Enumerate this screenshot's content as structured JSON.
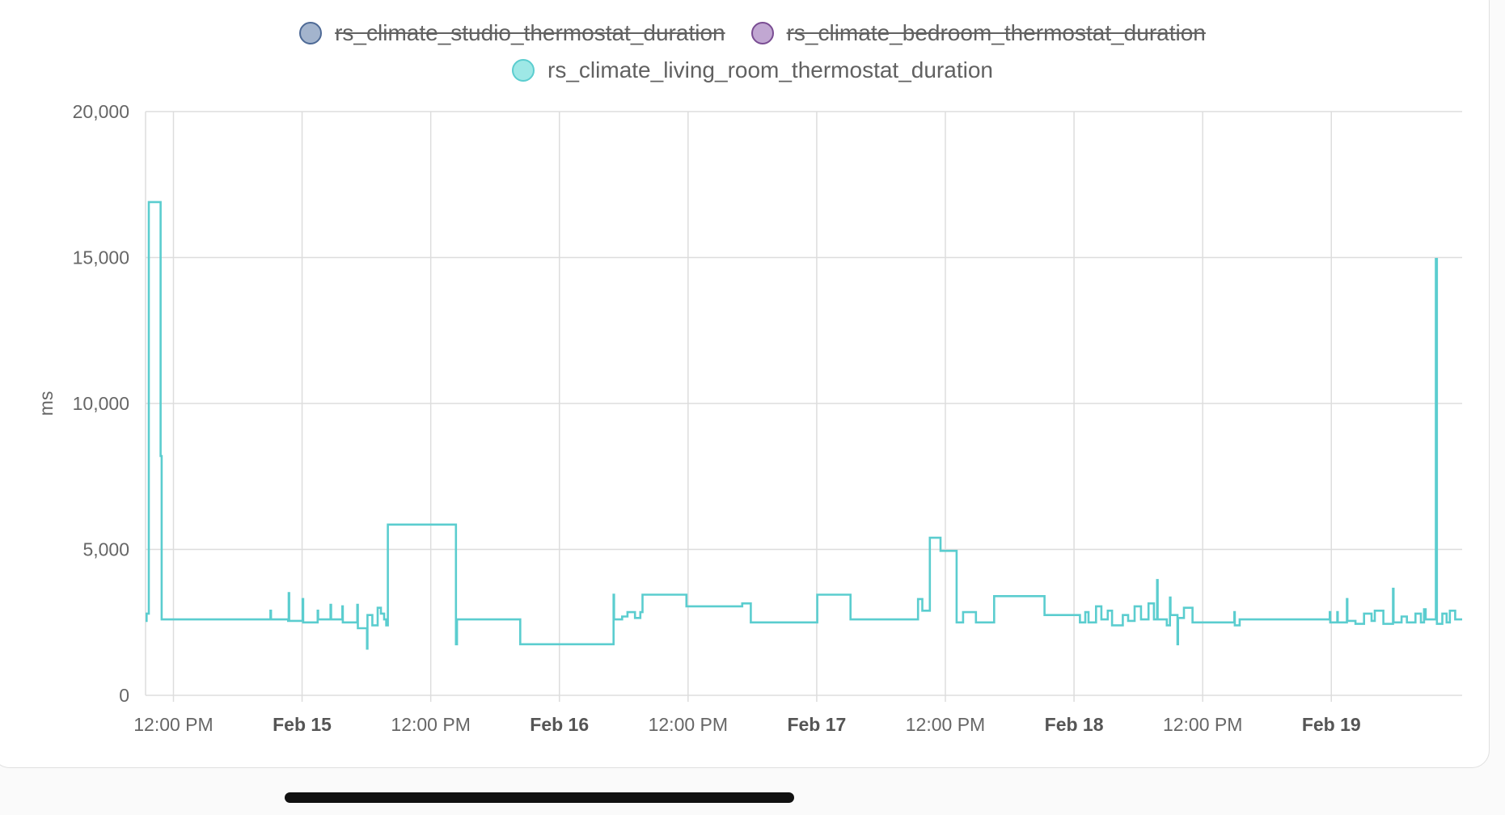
{
  "colors": {
    "studio": "#a3b4cd",
    "studio_border": "#4e6a96",
    "bedroom": "#c1a7d2",
    "bedroom_border": "#7a4d93",
    "living": "#5bcdcf",
    "living_fill": "#9ee8e6",
    "grid": "#dddddd",
    "axis_text": "#666666"
  },
  "chart_data": {
    "type": "line",
    "step": true,
    "ylabel": "ms",
    "ylim": [
      0,
      20000
    ],
    "y_ticks": [
      0,
      5000,
      10000,
      15000,
      20000
    ],
    "y_tick_labels": [
      "0",
      "5,000",
      "10,000",
      "15,000",
      "20,000"
    ],
    "x_range_hours": [
      -14.6,
      108.2
    ],
    "x_unit": "hours since Feb 15 00:00",
    "x_ticks": [
      {
        "hour": -12,
        "label": "12:00 PM",
        "bold": false
      },
      {
        "hour": 0,
        "label": "Feb 15",
        "bold": true
      },
      {
        "hour": 12,
        "label": "12:00 PM",
        "bold": false
      },
      {
        "hour": 24,
        "label": "Feb 16",
        "bold": true
      },
      {
        "hour": 36,
        "label": "12:00 PM",
        "bold": false
      },
      {
        "hour": 48,
        "label": "Feb 17",
        "bold": true
      },
      {
        "hour": 60,
        "label": "12:00 PM",
        "bold": false
      },
      {
        "hour": 72,
        "label": "Feb 18",
        "bold": true
      },
      {
        "hour": 84,
        "label": "12:00 PM",
        "bold": false
      },
      {
        "hour": 96,
        "label": "Feb 19",
        "bold": true
      }
    ],
    "legend": [
      {
        "key": "studio",
        "label": "rs_climate_studio_thermostat_duration",
        "hidden": true
      },
      {
        "key": "bedroom",
        "label": "rs_climate_bedroom_thermostat_duration",
        "hidden": true
      },
      {
        "key": "living",
        "label": "rs_climate_living_room_thermostat_duration",
        "hidden": false
      }
    ],
    "series": [
      {
        "name": "rs_climate_living_room_thermostat_duration",
        "points": [
          [
            -14.6,
            2550
          ],
          [
            -14.5,
            2800
          ],
          [
            -14.3,
            16900
          ],
          [
            -13.2,
            8200
          ],
          [
            -13.1,
            2600
          ],
          [
            -3,
            2600
          ],
          [
            -2.95,
            2900
          ],
          [
            -2.9,
            2600
          ],
          [
            -1.3,
            2550
          ],
          [
            -1.25,
            3500
          ],
          [
            -1.2,
            2550
          ],
          [
            0,
            2550
          ],
          [
            0.05,
            3300
          ],
          [
            0.1,
            2500
          ],
          [
            1.4,
            2500
          ],
          [
            1.45,
            2900
          ],
          [
            1.5,
            2600
          ],
          [
            2.6,
            2600
          ],
          [
            2.65,
            3100
          ],
          [
            2.7,
            2600
          ],
          [
            3.7,
            2600
          ],
          [
            3.75,
            3050
          ],
          [
            3.8,
            2500
          ],
          [
            5.1,
            2500
          ],
          [
            5.15,
            3100
          ],
          [
            5.2,
            2300
          ],
          [
            6.0,
            2300
          ],
          [
            6.05,
            1600
          ],
          [
            6.1,
            2750
          ],
          [
            6.5,
            2750
          ],
          [
            6.55,
            2400
          ],
          [
            7.0,
            2400
          ],
          [
            7.05,
            3000
          ],
          [
            7.3,
            3000
          ],
          [
            7.35,
            2800
          ],
          [
            7.6,
            2800
          ],
          [
            7.65,
            2600
          ],
          [
            7.8,
            2600
          ],
          [
            7.85,
            2400
          ],
          [
            8.0,
            5850
          ],
          [
            14.3,
            5850
          ],
          [
            14.35,
            1750
          ],
          [
            14.45,
            2600
          ],
          [
            20.3,
            2600
          ],
          [
            20.35,
            1750
          ],
          [
            29.0,
            1750
          ],
          [
            29.05,
            3450
          ],
          [
            29.1,
            2600
          ],
          [
            29.8,
            2600
          ],
          [
            29.85,
            2700
          ],
          [
            30.3,
            2700
          ],
          [
            30.35,
            2850
          ],
          [
            31.0,
            2850
          ],
          [
            31.05,
            2650
          ],
          [
            31.5,
            2650
          ],
          [
            31.55,
            2850
          ],
          [
            31.7,
            2850
          ],
          [
            31.75,
            3450
          ],
          [
            35.8,
            3450
          ],
          [
            35.85,
            3050
          ],
          [
            41.0,
            3050
          ],
          [
            41.05,
            3150
          ],
          [
            41.8,
            3150
          ],
          [
            41.85,
            2500
          ],
          [
            48.0,
            2500
          ],
          [
            48.05,
            3450
          ],
          [
            51.1,
            3450
          ],
          [
            51.15,
            2600
          ],
          [
            57.4,
            2600
          ],
          [
            57.45,
            3300
          ],
          [
            57.8,
            3300
          ],
          [
            57.85,
            2900
          ],
          [
            58.5,
            2900
          ],
          [
            58.55,
            5400
          ],
          [
            59.5,
            5400
          ],
          [
            59.55,
            4950
          ],
          [
            61.0,
            4950
          ],
          [
            61.05,
            2500
          ],
          [
            61.6,
            2500
          ],
          [
            61.65,
            2850
          ],
          [
            62.8,
            2850
          ],
          [
            62.85,
            2500
          ],
          [
            64.5,
            2500
          ],
          [
            64.55,
            3400
          ],
          [
            69.2,
            3400
          ],
          [
            69.25,
            2750
          ],
          [
            72.5,
            2750
          ],
          [
            72.55,
            2500
          ],
          [
            73.0,
            2500
          ],
          [
            73.05,
            2850
          ],
          [
            73.3,
            2850
          ],
          [
            73.35,
            2500
          ],
          [
            74.0,
            2500
          ],
          [
            74.05,
            3050
          ],
          [
            74.5,
            3050
          ],
          [
            74.55,
            2600
          ],
          [
            75.1,
            2600
          ],
          [
            75.15,
            2900
          ],
          [
            75.5,
            2900
          ],
          [
            75.55,
            2400
          ],
          [
            76.5,
            2400
          ],
          [
            76.55,
            2750
          ],
          [
            77.0,
            2750
          ],
          [
            77.05,
            2550
          ],
          [
            77.6,
            2550
          ],
          [
            77.65,
            3050
          ],
          [
            78.2,
            3050
          ],
          [
            78.25,
            2600
          ],
          [
            78.9,
            2600
          ],
          [
            78.95,
            3150
          ],
          [
            79.4,
            3150
          ],
          [
            79.45,
            2600
          ],
          [
            79.7,
            2600
          ],
          [
            79.75,
            3950
          ],
          [
            79.8,
            2600
          ],
          [
            80.6,
            2600
          ],
          [
            80.65,
            2400
          ],
          [
            80.9,
            2400
          ],
          [
            80.95,
            3350
          ],
          [
            81.0,
            2750
          ],
          [
            81.6,
            2750
          ],
          [
            81.65,
            1750
          ],
          [
            81.7,
            2650
          ],
          [
            82.2,
            2650
          ],
          [
            82.25,
            3000
          ],
          [
            83.0,
            3000
          ],
          [
            83.05,
            2500
          ],
          [
            86.9,
            2500
          ],
          [
            86.95,
            2850
          ],
          [
            87.0,
            2400
          ],
          [
            87.4,
            2400
          ],
          [
            87.45,
            2600
          ],
          [
            95.8,
            2600
          ],
          [
            95.85,
            2850
          ],
          [
            95.9,
            2500
          ],
          [
            96.5,
            2500
          ],
          [
            96.55,
            2850
          ],
          [
            96.6,
            2500
          ],
          [
            97.4,
            2500
          ],
          [
            97.45,
            3300
          ],
          [
            97.5,
            2550
          ],
          [
            98.2,
            2550
          ],
          [
            98.25,
            2450
          ],
          [
            99.0,
            2450
          ],
          [
            99.05,
            2800
          ],
          [
            99.7,
            2800
          ],
          [
            99.75,
            2550
          ],
          [
            100.0,
            2550
          ],
          [
            100.05,
            2900
          ],
          [
            100.8,
            2900
          ],
          [
            100.85,
            2450
          ],
          [
            101.7,
            2450
          ],
          [
            101.75,
            3650
          ],
          [
            101.8,
            2500
          ],
          [
            102.5,
            2500
          ],
          [
            102.55,
            2700
          ],
          [
            103.0,
            2700
          ],
          [
            103.05,
            2500
          ],
          [
            103.8,
            2500
          ],
          [
            103.85,
            2800
          ],
          [
            104.3,
            2800
          ],
          [
            104.35,
            2500
          ],
          [
            104.6,
            2500
          ],
          [
            104.65,
            2950
          ],
          [
            104.8,
            2600
          ],
          [
            105.7,
            2600
          ],
          [
            105.75,
            14950
          ],
          [
            105.85,
            2450
          ],
          [
            106.3,
            2450
          ],
          [
            106.35,
            2800
          ],
          [
            106.7,
            2800
          ],
          [
            106.75,
            2500
          ],
          [
            107.0,
            2500
          ],
          [
            107.05,
            2900
          ],
          [
            107.5,
            2900
          ],
          [
            107.55,
            2600
          ],
          [
            108.2,
            2600
          ]
        ]
      }
    ]
  }
}
